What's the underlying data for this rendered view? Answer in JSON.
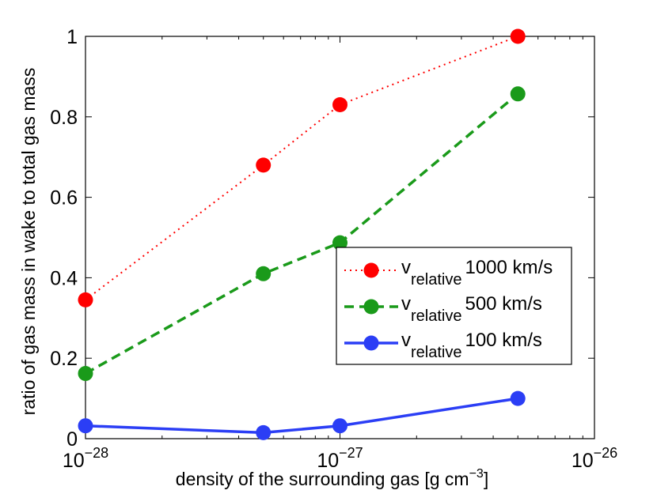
{
  "chart_data": {
    "type": "line",
    "xscale": "log",
    "xlim": [
      1e-28,
      1e-26
    ],
    "ylim": [
      0,
      1
    ],
    "xlabel": "density of the surrounding gas [g cm",
    "xlabel_sup": "−3",
    "xlabel_end": "]",
    "ylabel": "ratio of gas mass in wake to total gas mass",
    "xticks": [
      {
        "value": 1e-28,
        "base": "10",
        "exp": "−28"
      },
      {
        "value": 1e-27,
        "base": "10",
        "exp": "−27"
      },
      {
        "value": 1e-26,
        "base": "10",
        "exp": "−26"
      }
    ],
    "yticks": [
      {
        "value": 0,
        "label": "0"
      },
      {
        "value": 0.2,
        "label": "0.2"
      },
      {
        "value": 0.4,
        "label": "0.4"
      },
      {
        "value": 0.6,
        "label": "0.6"
      },
      {
        "value": 0.8,
        "label": "0.8"
      },
      {
        "value": 1,
        "label": "1"
      }
    ],
    "x": [
      1e-28,
      5e-28,
      1e-27,
      5e-27
    ],
    "series": [
      {
        "name": "1000 km/s",
        "label_main": "v",
        "label_sub": "relative",
        "label_rest": "1000 km/s",
        "color": "#ff0000",
        "dash": "dotted",
        "values": [
          0.345,
          0.68,
          0.83,
          1.0
        ]
      },
      {
        "name": "500 km/s",
        "label_main": "v",
        "label_sub": "relative",
        "label_rest": "500 km/s",
        "color": "#1a9a1a",
        "dash": "dashed",
        "values": [
          0.162,
          0.41,
          0.487,
          0.857
        ]
      },
      {
        "name": "100 km/s",
        "label_main": "v",
        "label_sub": "relative",
        "label_rest": "100 km/s",
        "color": "#2b3ef5",
        "dash": "solid",
        "values": [
          0.032,
          0.015,
          0.032,
          0.1
        ]
      }
    ],
    "legend_position": "center-right",
    "grid": false
  }
}
